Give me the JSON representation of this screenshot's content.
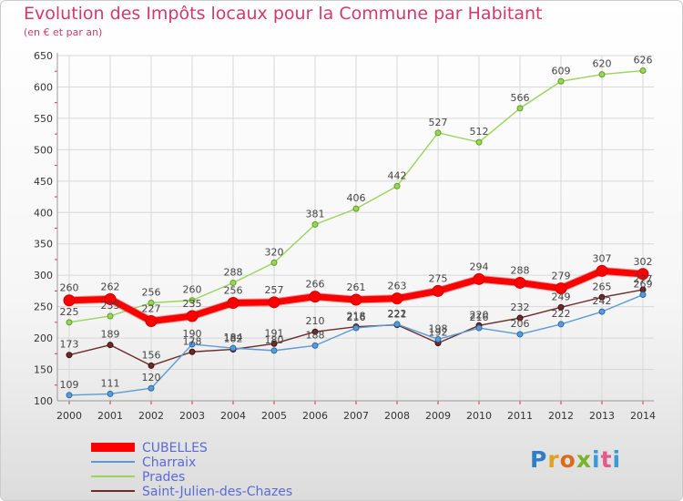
{
  "chart_data": {
    "type": "line",
    "title": "Evolution des Impôts locaux pour la Commune par Habitant",
    "subtitle": "(en € et par an)",
    "xlabel": "",
    "ylabel": "",
    "x": [
      "2000",
      "2001",
      "2002",
      "2003",
      "2004",
      "2005",
      "2006",
      "2007",
      "2008",
      "2009",
      "2010",
      "2011",
      "2012",
      "2013",
      "2014"
    ],
    "yticks": [
      100,
      150,
      200,
      250,
      300,
      350,
      400,
      450,
      500,
      550,
      600,
      650
    ],
    "ylim": [
      100,
      650
    ],
    "grid": true,
    "legend_position": "bottom-left",
    "series": [
      {
        "name": "CUBELLES",
        "color": "#ff0000",
        "values": [
          260,
          262,
          227,
          235,
          256,
          257,
          266,
          261,
          263,
          275,
          294,
          288,
          279,
          307,
          302
        ]
      },
      {
        "name": "Charraix",
        "color": "#5b9bd5",
        "values": [
          109,
          111,
          120,
          190,
          184,
          180,
          188,
          216,
          222,
          198,
          216,
          206,
          222,
          242,
          269
        ]
      },
      {
        "name": "Prades",
        "color": "#9ad45a",
        "values": [
          225,
          235,
          256,
          260,
          288,
          320,
          381,
          406,
          442,
          527,
          512,
          566,
          609,
          620,
          626
        ]
      },
      {
        "name": "Saint-Julien-des-Chazes",
        "color": "#6e2a2a",
        "values": [
          173,
          189,
          156,
          178,
          182,
          191,
          210,
          218,
          221,
          192,
          220,
          232,
          249,
          265,
          277
        ]
      }
    ]
  },
  "logo": {
    "p": "P",
    "r": "r",
    "o": "o",
    "x": "x",
    "i": "i",
    "t": "t",
    "i2": "i"
  }
}
